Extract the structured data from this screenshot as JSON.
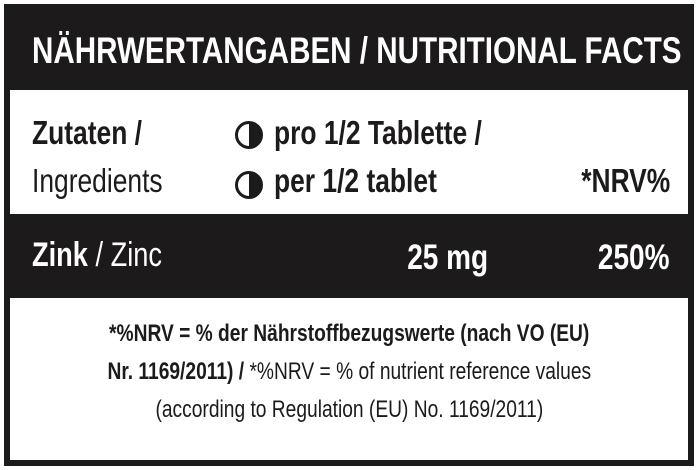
{
  "header": {
    "title": "NÄHRWERTANGABEN / NUTRITIONAL FACTS"
  },
  "columns": {
    "ingredient_de": "Zutaten /",
    "ingredient_en": "Ingredients",
    "amount_de": "pro 1/2 Tablette /",
    "amount_en": "per 1/2 tablet",
    "nrv": "*NRV%"
  },
  "rows": [
    {
      "name_de": "Zink",
      "name_en": "/ Zinc",
      "amount": "25 mg",
      "nrv": "250%"
    }
  ],
  "footnote": {
    "de_line1": "*%NRV = % der Nährstoffbezugswerte (nach VO (EU)",
    "de_line2": "Nr. 1169/2011) /",
    "en_line1": "*%NRV = % of nutrient reference values",
    "en_line2": "(according to Regulation (EU) No. 1169/2011)"
  }
}
